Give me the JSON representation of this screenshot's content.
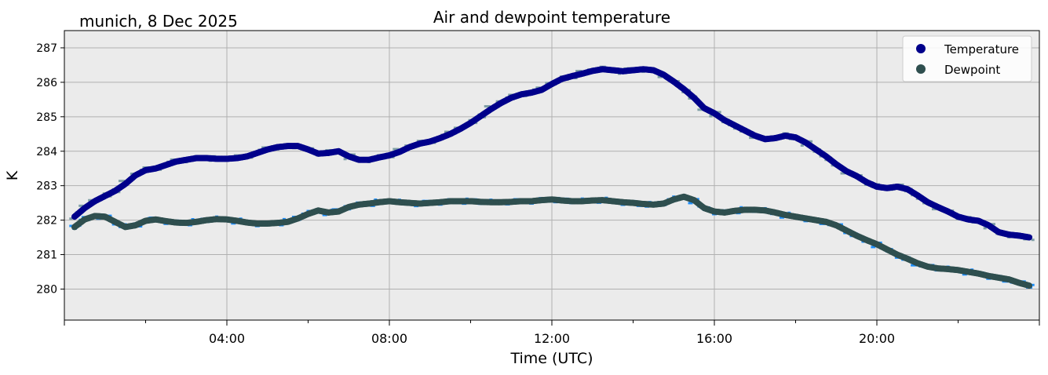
{
  "chart_data": {
    "type": "line",
    "title": "Air and dewpoint temperature",
    "subtitle": "munich, 8 Dec 2025",
    "xlabel": "Time (UTC)",
    "ylabel": "K",
    "xlim": [
      0,
      24
    ],
    "ylim": [
      279.1,
      287.5
    ],
    "xticks": [
      {
        "value": 0,
        "label": ""
      },
      {
        "value": 4,
        "label": "04:00"
      },
      {
        "value": 8,
        "label": "08:00"
      },
      {
        "value": 12,
        "label": "12:00"
      },
      {
        "value": 16,
        "label": "16:00"
      },
      {
        "value": 20,
        "label": "20:00"
      },
      {
        "value": 24,
        "label": ""
      }
    ],
    "xminor": [
      2,
      6,
      10,
      14,
      18,
      22
    ],
    "yticks": [
      280,
      281,
      282,
      283,
      284,
      285,
      286,
      287
    ],
    "grid": true,
    "plot_background": "#ebebeb",
    "legend_position": "upper-right",
    "series": [
      {
        "name": "Temperature",
        "color": "#00008b",
        "raw_color": "#7f9fa6",
        "x": [
          0.25,
          0.5,
          0.75,
          1.0,
          1.25,
          1.5,
          1.75,
          2.0,
          2.25,
          2.5,
          2.75,
          3.0,
          3.25,
          3.5,
          3.75,
          4.0,
          4.25,
          4.5,
          4.75,
          5.0,
          5.25,
          5.5,
          5.75,
          6.0,
          6.25,
          6.5,
          6.75,
          7.0,
          7.25,
          7.5,
          7.75,
          8.0,
          8.25,
          8.5,
          8.75,
          9.0,
          9.25,
          9.5,
          9.75,
          10.0,
          10.25,
          10.5,
          10.75,
          11.0,
          11.25,
          11.5,
          11.75,
          12.0,
          12.25,
          12.5,
          12.75,
          13.0,
          13.25,
          13.5,
          13.75,
          14.0,
          14.25,
          14.5,
          14.75,
          15.0,
          15.25,
          15.5,
          15.75,
          16.0,
          16.25,
          16.5,
          16.75,
          17.0,
          17.25,
          17.5,
          17.75,
          18.0,
          18.25,
          18.5,
          18.75,
          19.0,
          19.25,
          19.5,
          19.75,
          20.0,
          20.25,
          20.5,
          20.75,
          21.0,
          21.25,
          21.5,
          21.75,
          22.0,
          22.25,
          22.5,
          22.75,
          23.0,
          23.25,
          23.5,
          23.75
        ],
        "values": [
          282.1,
          282.35,
          282.55,
          282.7,
          282.85,
          283.05,
          283.3,
          283.45,
          283.5,
          283.6,
          283.7,
          283.75,
          283.8,
          283.8,
          283.78,
          283.78,
          283.8,
          283.85,
          283.95,
          284.05,
          284.12,
          284.15,
          284.15,
          284.05,
          283.93,
          283.95,
          284.0,
          283.85,
          283.75,
          283.75,
          283.82,
          283.88,
          283.98,
          284.12,
          284.22,
          284.28,
          284.38,
          284.5,
          284.65,
          284.82,
          285.02,
          285.22,
          285.4,
          285.55,
          285.65,
          285.7,
          285.78,
          285.95,
          286.1,
          286.18,
          286.25,
          286.33,
          286.38,
          286.35,
          286.32,
          286.35,
          286.38,
          286.35,
          286.22,
          286.02,
          285.8,
          285.55,
          285.25,
          285.1,
          284.9,
          284.75,
          284.6,
          284.45,
          284.35,
          284.38,
          284.45,
          284.4,
          284.25,
          284.05,
          283.85,
          283.62,
          283.42,
          283.28,
          283.1,
          282.97,
          282.93,
          282.97,
          282.9,
          282.72,
          282.52,
          282.38,
          282.25,
          282.1,
          282.02,
          281.98,
          281.85,
          281.65,
          281.58,
          281.55,
          281.5
        ]
      },
      {
        "name": "Dewpoint",
        "color": "#2f4f4f",
        "raw_color": "#1e90ff",
        "x": [
          0.25,
          0.5,
          0.75,
          1.0,
          1.25,
          1.5,
          1.75,
          2.0,
          2.25,
          2.5,
          2.75,
          3.0,
          3.25,
          3.5,
          3.75,
          4.0,
          4.25,
          4.5,
          4.75,
          5.0,
          5.25,
          5.5,
          5.75,
          6.0,
          6.25,
          6.5,
          6.75,
          7.0,
          7.25,
          7.5,
          7.75,
          8.0,
          8.25,
          8.5,
          8.75,
          9.0,
          9.25,
          9.5,
          9.75,
          10.0,
          10.25,
          10.5,
          10.75,
          11.0,
          11.25,
          11.5,
          11.75,
          12.0,
          12.25,
          12.5,
          12.75,
          13.0,
          13.25,
          13.5,
          13.75,
          14.0,
          14.25,
          14.5,
          14.75,
          15.0,
          15.25,
          15.5,
          15.75,
          16.0,
          16.25,
          16.5,
          16.75,
          17.0,
          17.25,
          17.5,
          17.75,
          18.0,
          18.25,
          18.5,
          18.75,
          19.0,
          19.25,
          19.5,
          19.75,
          20.0,
          20.25,
          20.5,
          20.75,
          21.0,
          21.25,
          21.5,
          21.75,
          22.0,
          22.25,
          22.5,
          22.75,
          23.0,
          23.25,
          23.5,
          23.75
        ],
        "values": [
          281.8,
          282.02,
          282.12,
          282.1,
          281.95,
          281.8,
          281.85,
          281.98,
          282.02,
          281.97,
          281.93,
          281.92,
          281.95,
          282.0,
          282.03,
          282.02,
          281.98,
          281.93,
          281.9,
          281.9,
          281.92,
          281.95,
          282.05,
          282.18,
          282.28,
          282.22,
          282.25,
          282.38,
          282.45,
          282.48,
          282.52,
          282.55,
          282.52,
          282.5,
          282.48,
          282.5,
          282.52,
          282.55,
          282.55,
          282.55,
          282.53,
          282.52,
          282.52,
          282.53,
          282.55,
          282.55,
          282.58,
          282.6,
          282.57,
          282.55,
          282.55,
          282.57,
          282.58,
          282.55,
          282.52,
          282.5,
          282.47,
          282.45,
          282.48,
          282.6,
          282.68,
          282.58,
          282.35,
          282.25,
          282.22,
          282.27,
          282.3,
          282.3,
          282.28,
          282.22,
          282.15,
          282.1,
          282.05,
          282.0,
          281.95,
          281.85,
          281.7,
          281.55,
          281.42,
          281.3,
          281.15,
          281.0,
          280.88,
          280.75,
          280.65,
          280.6,
          280.58,
          280.55,
          280.5,
          280.45,
          280.38,
          280.33,
          280.28,
          280.18,
          280.1
        ]
      }
    ]
  }
}
